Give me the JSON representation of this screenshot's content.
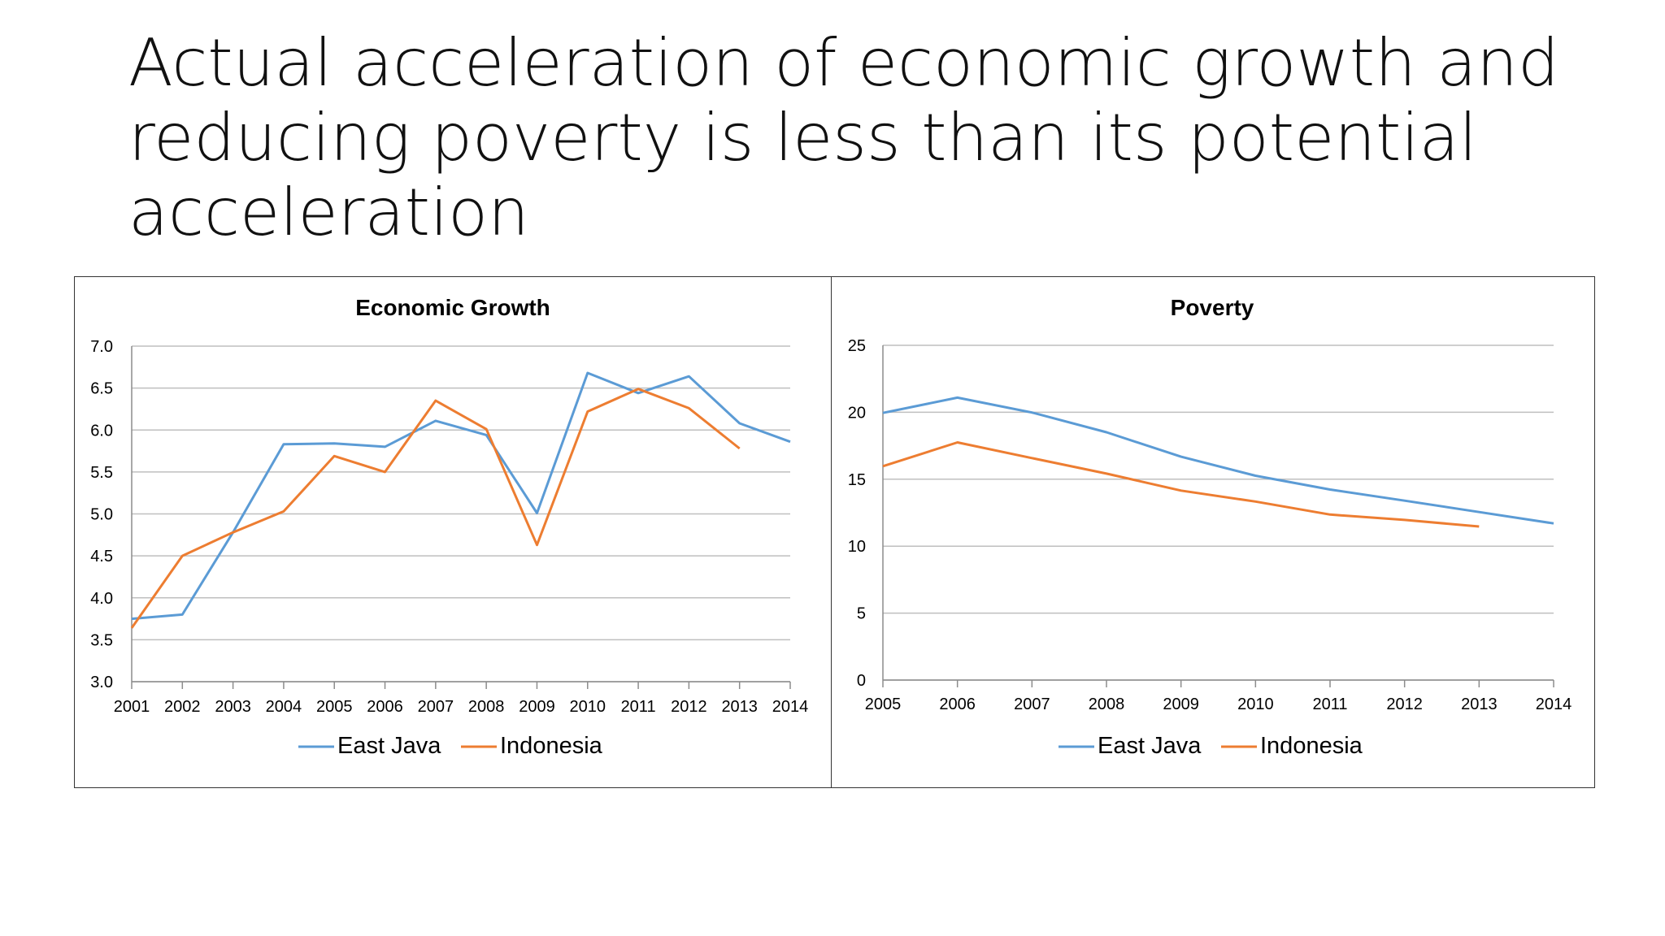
{
  "slide": {
    "title_lines": [
      "Actual acceleration of economic growth and",
      "reducing poverty is less than its potential",
      "acceleration"
    ]
  },
  "colors": {
    "east_java": "#5b9bd5",
    "indonesia": "#ed7d31",
    "grid": "#bfbfbf",
    "axis": "#8c8c8c"
  },
  "chart_data": [
    {
      "id": "growth",
      "type": "line",
      "title": "Economic Growth",
      "x": [
        "2001",
        "2002",
        "2003",
        "2004",
        "2005",
        "2006",
        "2007",
        "2008",
        "2009",
        "2010",
        "2011",
        "2012",
        "2013",
        "2014"
      ],
      "ylim": [
        3.0,
        7.0
      ],
      "yticks": [
        "7.0",
        "6.5",
        "6.0",
        "5.5",
        "5.0",
        "4.5",
        "4.0",
        "3.5",
        "3.0"
      ],
      "ytick_values": [
        7.0,
        6.5,
        6.0,
        5.5,
        5.0,
        4.5,
        4.0,
        3.5,
        3.0
      ],
      "grid": true,
      "legend": "bottom",
      "series": [
        {
          "name": "East Java",
          "color": "#5b9bd5",
          "values": [
            3.75,
            3.8,
            4.78,
            5.83,
            5.84,
            5.8,
            6.11,
            5.94,
            5.01,
            6.68,
            6.44,
            6.64,
            6.08,
            5.86
          ]
        },
        {
          "name": "Indonesia",
          "color": "#ed7d31",
          "values": [
            3.64,
            4.5,
            4.78,
            5.03,
            5.69,
            5.5,
            6.35,
            6.01,
            4.63,
            6.22,
            6.49,
            6.26,
            5.78,
            null
          ]
        }
      ]
    },
    {
      "id": "poverty",
      "type": "line",
      "title": "Poverty",
      "x": [
        "2005",
        "2006",
        "2007",
        "2008",
        "2009",
        "2010",
        "2011",
        "2012",
        "2013",
        "2014"
      ],
      "ylim": [
        0,
        25
      ],
      "yticks": [
        "25",
        "20",
        "15",
        "10",
        "5",
        "0"
      ],
      "ytick_values": [
        25,
        20,
        15,
        10,
        5,
        0
      ],
      "grid": true,
      "legend": "bottom",
      "series": [
        {
          "name": "East Java",
          "color": "#5b9bd5",
          "values": [
            19.95,
            21.09,
            19.98,
            18.51,
            16.68,
            15.26,
            14.23,
            13.4,
            12.55,
            11.7
          ]
        },
        {
          "name": "Indonesia",
          "color": "#ed7d31",
          "values": [
            15.97,
            17.75,
            16.58,
            15.42,
            14.15,
            13.33,
            12.36,
            11.96,
            11.47,
            null
          ]
        }
      ]
    }
  ]
}
